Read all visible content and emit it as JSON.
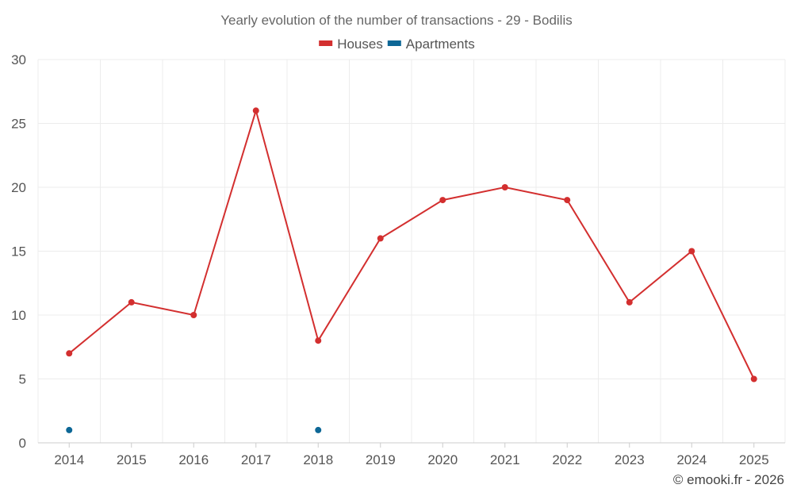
{
  "chart_data": {
    "type": "line",
    "title": "Yearly evolution of the number of transactions - 29 - Bodilis",
    "categories": [
      "2014",
      "2015",
      "2016",
      "2017",
      "2018",
      "2019",
      "2020",
      "2021",
      "2022",
      "2023",
      "2024",
      "2025"
    ],
    "series": [
      {
        "name": "Houses",
        "color": "#d32f2f",
        "values": [
          7,
          11,
          10,
          26,
          8,
          16,
          19,
          20,
          19,
          11,
          15,
          5
        ]
      },
      {
        "name": "Apartments",
        "color": "#0d6796",
        "values": [
          1,
          null,
          null,
          null,
          1,
          null,
          null,
          null,
          null,
          null,
          null,
          null
        ]
      }
    ],
    "ylim": [
      0,
      30
    ],
    "yticks": [
      0,
      5,
      10,
      15,
      20,
      25,
      30
    ],
    "xlabel": "",
    "ylabel": "",
    "grid": true,
    "legend_position": "top-center"
  },
  "credit": "© emooki.fr - 2026"
}
